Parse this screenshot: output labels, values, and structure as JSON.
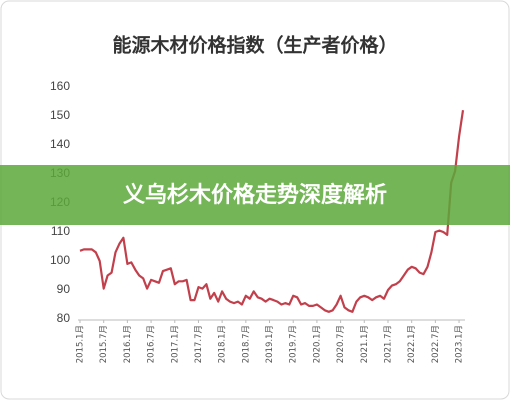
{
  "chart_data": {
    "type": "line",
    "title": "能源木材价格指数（生产者价格）",
    "categories": [
      "2015.1月",
      null,
      null,
      null,
      null,
      null,
      "2015.7月",
      null,
      null,
      null,
      null,
      null,
      "2016.1月",
      null,
      null,
      null,
      null,
      null,
      "2016.7月",
      null,
      null,
      null,
      null,
      null,
      "2017.1月",
      null,
      null,
      null,
      null,
      null,
      "2017.7月",
      null,
      null,
      null,
      null,
      null,
      "2018.1月",
      null,
      null,
      null,
      null,
      null,
      "2018.7月",
      null,
      null,
      null,
      null,
      null,
      "2019.1月",
      null,
      null,
      null,
      null,
      null,
      "2019.7月",
      null,
      null,
      null,
      null,
      null,
      "2020.1月",
      null,
      null,
      null,
      null,
      null,
      "2020.7月",
      null,
      null,
      null,
      null,
      null,
      "2021.1月",
      null,
      null,
      null,
      null,
      null,
      "2021.7月",
      null,
      null,
      null,
      null,
      null,
      "2022.1月",
      null,
      null,
      null,
      null,
      null,
      "2022.7月",
      null,
      null,
      null,
      null,
      null,
      "2023.1月",
      null
    ],
    "values": [
      103.5,
      104,
      104,
      104,
      103,
      100,
      90.5,
      95,
      96,
      103,
      106,
      108,
      99,
      99.5,
      97,
      95,
      94,
      90.5,
      93.5,
      93,
      92.5,
      96.5,
      97,
      97.5,
      92,
      93,
      93,
      93.5,
      86.5,
      86.5,
      91,
      90.5,
      92,
      87,
      89,
      86,
      89.5,
      87,
      86,
      85.5,
      86,
      85,
      88,
      87,
      89.5,
      87.5,
      87,
      86,
      87,
      86.5,
      86,
      85,
      85.5,
      85,
      88,
      87.5,
      85,
      85.5,
      84.5,
      84.5,
      85,
      84,
      83,
      82.5,
      83,
      85,
      88,
      84,
      83,
      82.5,
      86,
      87.5,
      88,
      87.5,
      86.5,
      87.5,
      88,
      87,
      90,
      91.5,
      92,
      93,
      95,
      97,
      98,
      97.5,
      96,
      95.5,
      98,
      103,
      110,
      110.5,
      110,
      109,
      127,
      131,
      143,
      152
    ],
    "color": "#c2404c",
    "ylim": [
      80,
      160
    ],
    "yticks": [
      80,
      90,
      100,
      110,
      120,
      130,
      140,
      150,
      160
    ],
    "grid": false
  },
  "banner": "义乌杉木价格走势深度解析"
}
